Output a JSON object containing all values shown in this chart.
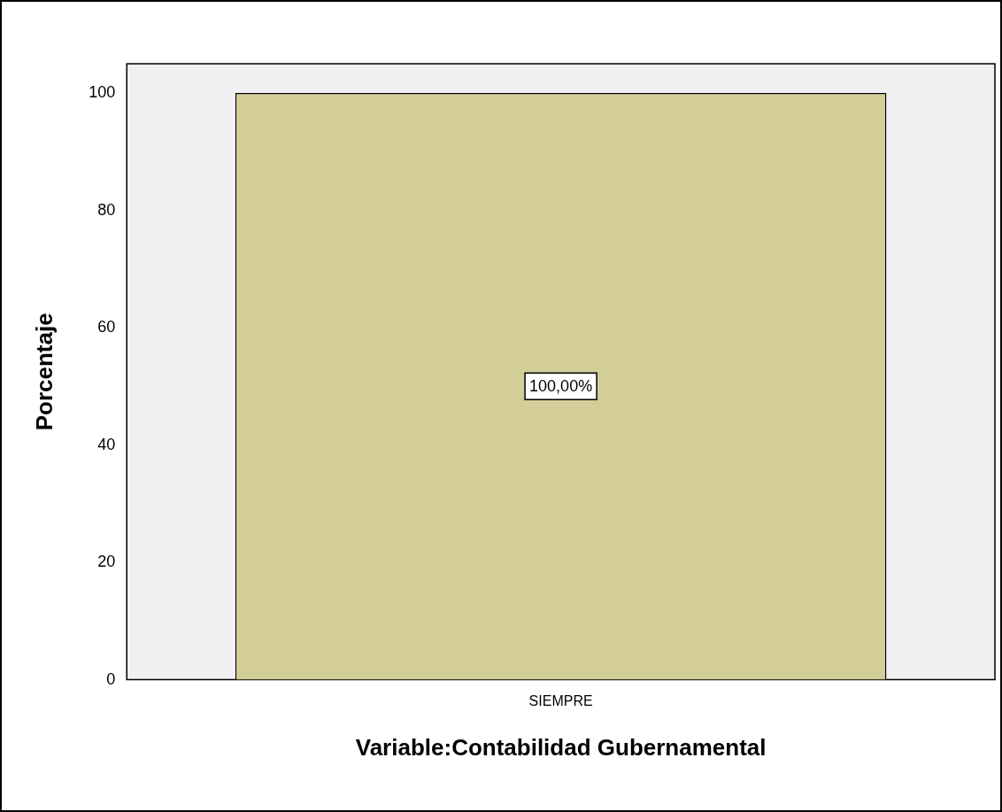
{
  "chart_data": {
    "type": "bar",
    "xlabel": "Variable:Contabilidad Gubernamental",
    "ylabel": "Porcentaje",
    "categories": [
      "SIEMPRE"
    ],
    "values": [
      100
    ],
    "color": "#d3ce98",
    "value_labels": [
      "100,00%"
    ],
    "ylim": [
      0,
      105
    ],
    "yticks": [
      0,
      20,
      40,
      60,
      80,
      100
    ],
    "grid": false,
    "legend": false
  }
}
